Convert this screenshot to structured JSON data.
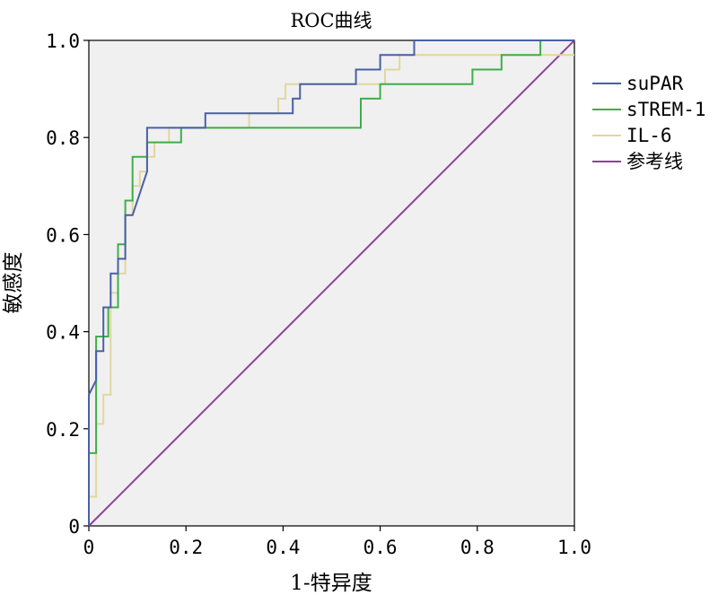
{
  "chart_data": {
    "type": "line",
    "title": "ROC曲线",
    "xlabel": "1-特异度",
    "ylabel": "敏感度",
    "xlim": [
      0,
      1
    ],
    "ylim": [
      0,
      1
    ],
    "x_ticks": [
      "0",
      "0.2",
      "0.4",
      "0.6",
      "0.8",
      "1.0"
    ],
    "y_ticks": [
      "0",
      "0.2",
      "0.4",
      "0.6",
      "0.8",
      "1.0"
    ],
    "plot_background": "#f0f0f0",
    "legend_position": "right",
    "series": [
      {
        "name": "suPAR",
        "color": "#4a5fa8",
        "points": [
          [
            0,
            0
          ],
          [
            0,
            0.27
          ],
          [
            0.015,
            0.3
          ],
          [
            0.015,
            0.36
          ],
          [
            0.03,
            0.36
          ],
          [
            0.03,
            0.45
          ],
          [
            0.045,
            0.45
          ],
          [
            0.045,
            0.52
          ],
          [
            0.06,
            0.52
          ],
          [
            0.06,
            0.55
          ],
          [
            0.075,
            0.55
          ],
          [
            0.075,
            0.64
          ],
          [
            0.09,
            0.64
          ],
          [
            0.12,
            0.73
          ],
          [
            0.12,
            0.82
          ],
          [
            0.24,
            0.82
          ],
          [
            0.24,
            0.85
          ],
          [
            0.39,
            0.85
          ],
          [
            0.42,
            0.85
          ],
          [
            0.42,
            0.88
          ],
          [
            0.435,
            0.88
          ],
          [
            0.435,
            0.91
          ],
          [
            0.55,
            0.91
          ],
          [
            0.55,
            0.94
          ],
          [
            0.6,
            0.94
          ],
          [
            0.6,
            0.97
          ],
          [
            0.67,
            0.97
          ],
          [
            0.67,
            1.0
          ],
          [
            1.0,
            1.0
          ]
        ]
      },
      {
        "name": "sTREM-1",
        "color": "#3fae4a",
        "points": [
          [
            0,
            0
          ],
          [
            0,
            0.15
          ],
          [
            0.015,
            0.15
          ],
          [
            0.015,
            0.39
          ],
          [
            0.04,
            0.39
          ],
          [
            0.04,
            0.45
          ],
          [
            0.06,
            0.45
          ],
          [
            0.06,
            0.58
          ],
          [
            0.075,
            0.58
          ],
          [
            0.075,
            0.67
          ],
          [
            0.09,
            0.67
          ],
          [
            0.09,
            0.76
          ],
          [
            0.12,
            0.76
          ],
          [
            0.12,
            0.79
          ],
          [
            0.14,
            0.79
          ],
          [
            0.15,
            0.79
          ],
          [
            0.19,
            0.79
          ],
          [
            0.19,
            0.82
          ],
          [
            0.56,
            0.82
          ],
          [
            0.56,
            0.88
          ],
          [
            0.6,
            0.88
          ],
          [
            0.6,
            0.91
          ],
          [
            0.79,
            0.91
          ],
          [
            0.79,
            0.94
          ],
          [
            0.85,
            0.94
          ],
          [
            0.85,
            0.97
          ],
          [
            0.93,
            0.97
          ],
          [
            0.93,
            1.0
          ],
          [
            1.0,
            1.0
          ]
        ]
      },
      {
        "name": "IL-6",
        "color": "#e0d79e",
        "points": [
          [
            0,
            0
          ],
          [
            0,
            0.06
          ],
          [
            0.015,
            0.06
          ],
          [
            0.015,
            0.21
          ],
          [
            0.03,
            0.21
          ],
          [
            0.03,
            0.27
          ],
          [
            0.045,
            0.27
          ],
          [
            0.045,
            0.48
          ],
          [
            0.06,
            0.48
          ],
          [
            0.06,
            0.52
          ],
          [
            0.075,
            0.52
          ],
          [
            0.075,
            0.64
          ],
          [
            0.09,
            0.64
          ],
          [
            0.09,
            0.7
          ],
          [
            0.105,
            0.7
          ],
          [
            0.105,
            0.73
          ],
          [
            0.12,
            0.73
          ],
          [
            0.12,
            0.76
          ],
          [
            0.135,
            0.76
          ],
          [
            0.135,
            0.79
          ],
          [
            0.165,
            0.79
          ],
          [
            0.165,
            0.82
          ],
          [
            0.33,
            0.82
          ],
          [
            0.33,
            0.85
          ],
          [
            0.39,
            0.85
          ],
          [
            0.39,
            0.88
          ],
          [
            0.405,
            0.88
          ],
          [
            0.405,
            0.91
          ],
          [
            0.61,
            0.91
          ],
          [
            0.61,
            0.94
          ],
          [
            0.64,
            0.94
          ],
          [
            0.64,
            0.97
          ],
          [
            1.0,
            0.97
          ]
        ]
      },
      {
        "name": "参考线",
        "color": "#8e3f9a",
        "points": [
          [
            0,
            0
          ],
          [
            1,
            1
          ]
        ]
      }
    ]
  }
}
